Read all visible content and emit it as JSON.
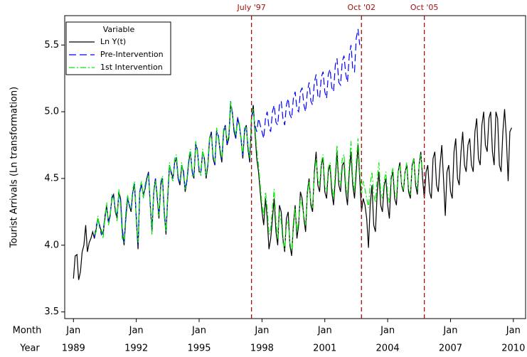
{
  "chart_data": {
    "type": "line",
    "y_label": "Tourist Arrivals (Ln transformation)",
    "x_row_labels": [
      "Month",
      "Year"
    ],
    "legend_title": "Variable",
    "legend": "upper left",
    "xlim": [
      "1988-08",
      "2010-08"
    ],
    "ylim": [
      3.45,
      5.72
    ],
    "yticks": [
      3.5,
      {
        "value": 4,
        "label": "4.0"
      },
      4.5,
      {
        "value": 5,
        "label": "5.0"
      },
      5.5
    ],
    "xticks": [
      {
        "value": "1989-01",
        "label": [
          "Jan",
          "1989"
        ]
      },
      {
        "value": "1992-01",
        "label": [
          "Jan",
          "1992"
        ]
      },
      {
        "value": "1995-01",
        "label": [
          "Jan",
          "1995"
        ]
      },
      {
        "value": "1998-01",
        "label": [
          "Jan",
          "1998"
        ]
      },
      {
        "value": "2001-01",
        "label": [
          "Jan",
          "2001"
        ]
      },
      {
        "value": "2004-01",
        "label": [
          "Jan",
          "2004"
        ]
      },
      {
        "value": "2007-01",
        "label": [
          "Jan",
          "2007"
        ]
      },
      {
        "value": "2010-01",
        "label": [
          "Jan",
          "2010"
        ]
      }
    ],
    "annotations": [
      {
        "label": "July '97",
        "x": "1997-07",
        "color": "#a01010"
      },
      {
        "label": "Oct '02",
        "x": "2002-10",
        "color": "#a01010"
      },
      {
        "label": "Oct '05",
        "x": "2005-10",
        "color": "#a01010"
      }
    ],
    "x": [
      "1989-01",
      "1989-02",
      "1989-03",
      "1989-04",
      "1989-05",
      "1989-06",
      "1989-07",
      "1989-08",
      "1989-09",
      "1989-10",
      "1989-11",
      "1989-12",
      "1990-01",
      "1990-02",
      "1990-03",
      "1990-04",
      "1990-05",
      "1990-06",
      "1990-07",
      "1990-08",
      "1990-09",
      "1990-10",
      "1990-11",
      "1990-12",
      "1991-01",
      "1991-02",
      "1991-03",
      "1991-04",
      "1991-05",
      "1991-06",
      "1991-07",
      "1991-08",
      "1991-09",
      "1991-10",
      "1991-11",
      "1991-12",
      "1992-01",
      "1992-02",
      "1992-03",
      "1992-04",
      "1992-05",
      "1992-06",
      "1992-07",
      "1992-08",
      "1992-09",
      "1992-10",
      "1992-11",
      "1992-12",
      "1993-01",
      "1993-02",
      "1993-03",
      "1993-04",
      "1993-05",
      "1993-06",
      "1993-07",
      "1993-08",
      "1993-09",
      "1993-10",
      "1993-11",
      "1993-12",
      "1994-01",
      "1994-02",
      "1994-03",
      "1994-04",
      "1994-05",
      "1994-06",
      "1994-07",
      "1994-08",
      "1994-09",
      "1994-10",
      "1994-11",
      "1994-12",
      "1995-01",
      "1995-02",
      "1995-03",
      "1995-04",
      "1995-05",
      "1995-06",
      "1995-07",
      "1995-08",
      "1995-09",
      "1995-10",
      "1995-11",
      "1995-12",
      "1996-01",
      "1996-02",
      "1996-03",
      "1996-04",
      "1996-05",
      "1996-06",
      "1996-07",
      "1996-08",
      "1996-09",
      "1996-10",
      "1996-11",
      "1996-12",
      "1997-01",
      "1997-02",
      "1997-03",
      "1997-04",
      "1997-05",
      "1997-06",
      "1997-07",
      "1997-08",
      "1997-09",
      "1997-10",
      "1997-11",
      "1997-12",
      "1998-01",
      "1998-02",
      "1998-03",
      "1998-04",
      "1998-05",
      "1998-06",
      "1998-07",
      "1998-08",
      "1998-09",
      "1998-10",
      "1998-11",
      "1998-12",
      "1999-01",
      "1999-02",
      "1999-03",
      "1999-04",
      "1999-05",
      "1999-06",
      "1999-07",
      "1999-08",
      "1999-09",
      "1999-10",
      "1999-11",
      "1999-12",
      "2000-01",
      "2000-02",
      "2000-03",
      "2000-04",
      "2000-05",
      "2000-06",
      "2000-07",
      "2000-08",
      "2000-09",
      "2000-10",
      "2000-11",
      "2000-12",
      "2001-01",
      "2001-02",
      "2001-03",
      "2001-04",
      "2001-05",
      "2001-06",
      "2001-07",
      "2001-08",
      "2001-09",
      "2001-10",
      "2001-11",
      "2001-12",
      "2002-01",
      "2002-02",
      "2002-03",
      "2002-04",
      "2002-05",
      "2002-06",
      "2002-07",
      "2002-08",
      "2002-09",
      "2002-10",
      "2002-11",
      "2002-12",
      "2003-01",
      "2003-02",
      "2003-03",
      "2003-04",
      "2003-05",
      "2003-06",
      "2003-07",
      "2003-08",
      "2003-09",
      "2003-10",
      "2003-11",
      "2003-12",
      "2004-01",
      "2004-02",
      "2004-03",
      "2004-04",
      "2004-05",
      "2004-06",
      "2004-07",
      "2004-08",
      "2004-09",
      "2004-10",
      "2004-11",
      "2004-12",
      "2005-01",
      "2005-02",
      "2005-03",
      "2005-04",
      "2005-05",
      "2005-06",
      "2005-07",
      "2005-08",
      "2005-09",
      "2005-10",
      "2005-11",
      "2005-12",
      "2006-01",
      "2006-02",
      "2006-03",
      "2006-04",
      "2006-05",
      "2006-06",
      "2006-07",
      "2006-08",
      "2006-09",
      "2006-10",
      "2006-11",
      "2006-12",
      "2007-01",
      "2007-02",
      "2007-03",
      "2007-04",
      "2007-05",
      "2007-06",
      "2007-07",
      "2007-08",
      "2007-09",
      "2007-10",
      "2007-11",
      "2007-12",
      "2008-01",
      "2008-02",
      "2008-03",
      "2008-04",
      "2008-05",
      "2008-06",
      "2008-07",
      "2008-08",
      "2008-09",
      "2008-10",
      "2008-11",
      "2008-12",
      "2009-01",
      "2009-02",
      "2009-03",
      "2009-04",
      "2009-05",
      "2009-06",
      "2009-07",
      "2009-08",
      "2009-09",
      "2009-10",
      "2009-11",
      "2009-12"
    ],
    "series": [
      {
        "name": "Ln Y(t)",
        "color": "#000000",
        "dash": "none",
        "values": [
          3.75,
          3.92,
          3.93,
          3.74,
          3.8,
          3.95,
          4.0,
          4.15,
          3.95,
          4.02,
          4.05,
          4.1,
          4.05,
          4.12,
          4.2,
          4.15,
          4.1,
          4.08,
          4.2,
          4.3,
          4.18,
          4.22,
          4.35,
          4.38,
          4.25,
          4.2,
          4.4,
          4.35,
          4.1,
          4.0,
          4.2,
          4.35,
          4.3,
          4.25,
          4.4,
          4.45,
          4.2,
          3.97,
          4.4,
          4.45,
          4.38,
          4.42,
          4.5,
          4.55,
          4.3,
          4.1,
          4.4,
          4.5,
          4.35,
          4.2,
          4.45,
          4.5,
          4.25,
          4.08,
          4.35,
          4.6,
          4.55,
          4.5,
          4.62,
          4.65,
          4.5,
          4.45,
          4.6,
          4.55,
          4.4,
          4.48,
          4.62,
          4.7,
          4.55,
          4.5,
          4.75,
          4.72,
          4.55,
          4.55,
          4.7,
          4.65,
          4.5,
          4.6,
          4.8,
          4.85,
          4.65,
          4.6,
          4.85,
          4.82,
          4.7,
          4.62,
          4.85,
          4.9,
          4.75,
          4.8,
          5.05,
          5.0,
          4.85,
          4.8,
          4.95,
          4.9,
          4.8,
          4.65,
          4.85,
          4.9,
          4.72,
          4.62,
          4.95,
          5.05,
          4.85,
          4.65,
          4.55,
          4.4,
          4.25,
          4.15,
          4.35,
          4.2,
          3.97,
          4.05,
          4.2,
          4.35,
          4.1,
          4.0,
          4.3,
          4.25,
          4.05,
          3.95,
          4.2,
          4.25,
          4.0,
          3.92,
          4.15,
          4.3,
          4.05,
          4.15,
          4.4,
          4.35,
          4.2,
          4.1,
          4.4,
          4.5,
          4.3,
          4.25,
          4.55,
          4.7,
          4.45,
          4.4,
          4.6,
          4.65,
          4.4,
          4.35,
          4.55,
          4.6,
          4.4,
          4.3,
          4.5,
          4.7,
          4.45,
          4.4,
          4.6,
          4.62,
          4.4,
          4.3,
          4.55,
          4.7,
          4.45,
          4.35,
          4.55,
          4.75,
          4.5,
          4.25,
          4.35,
          4.3,
          4.2,
          3.98,
          4.3,
          4.45,
          4.15,
          4.1,
          4.4,
          4.55,
          4.3,
          4.25,
          4.45,
          4.5,
          4.3,
          4.2,
          4.5,
          4.55,
          4.35,
          4.3,
          4.55,
          4.62,
          4.45,
          4.4,
          4.55,
          4.6,
          4.4,
          4.35,
          4.6,
          4.65,
          4.45,
          4.38,
          4.6,
          4.7,
          4.5,
          4.35,
          4.55,
          4.6,
          4.4,
          4.35,
          4.65,
          4.7,
          4.45,
          4.4,
          4.6,
          4.75,
          4.5,
          4.22,
          4.55,
          4.6,
          4.4,
          4.35,
          4.7,
          4.8,
          4.5,
          4.45,
          4.7,
          4.85,
          4.6,
          4.55,
          4.75,
          4.8,
          4.6,
          4.55,
          4.85,
          4.95,
          4.65,
          4.6,
          4.9,
          5.0,
          4.75,
          4.7,
          4.95,
          5.0,
          4.7,
          4.6,
          5.0,
          4.95,
          4.6,
          4.55,
          4.85,
          5.02,
          4.8,
          4.48,
          4.85,
          4.88
        ]
      },
      {
        "name": "Pre-Intervention",
        "color": "#0000ff",
        "dash": "10,5",
        "values": [
          null,
          null,
          null,
          null,
          null,
          null,
          null,
          null,
          null,
          null,
          null,
          null,
          4.06,
          4.14,
          4.2,
          4.14,
          4.08,
          4.1,
          4.22,
          4.3,
          4.16,
          4.22,
          4.36,
          4.38,
          4.26,
          4.22,
          4.38,
          4.34,
          4.12,
          4.02,
          4.22,
          4.36,
          4.3,
          4.26,
          4.4,
          4.46,
          4.22,
          4.0,
          4.4,
          4.46,
          4.36,
          4.42,
          4.5,
          4.54,
          4.3,
          4.12,
          4.4,
          4.5,
          4.36,
          4.22,
          4.46,
          4.5,
          4.26,
          4.1,
          4.36,
          4.6,
          4.54,
          4.5,
          4.62,
          4.66,
          4.5,
          4.46,
          4.6,
          4.56,
          4.42,
          4.48,
          4.62,
          4.7,
          4.56,
          4.5,
          4.76,
          4.72,
          4.56,
          4.54,
          4.7,
          4.64,
          4.52,
          4.6,
          4.8,
          4.84,
          4.66,
          4.6,
          4.86,
          4.82,
          4.72,
          4.64,
          4.86,
          4.9,
          4.76,
          4.8,
          5.08,
          5.0,
          4.86,
          4.8,
          4.96,
          4.9,
          4.8,
          4.66,
          4.86,
          4.9,
          4.74,
          4.64,
          4.96,
          5.0,
          4.9,
          4.85,
          4.95,
          4.9,
          4.85,
          4.8,
          4.95,
          5.0,
          4.88,
          4.85,
          5.0,
          5.05,
          4.92,
          4.9,
          5.05,
          5.08,
          4.95,
          4.9,
          5.05,
          5.1,
          4.98,
          4.95,
          5.1,
          5.15,
          5.02,
          5.0,
          5.15,
          5.18,
          5.05,
          5.0,
          5.15,
          5.22,
          5.08,
          5.05,
          5.22,
          5.28,
          5.12,
          5.1,
          5.26,
          5.3,
          5.15,
          5.1,
          5.28,
          5.32,
          5.18,
          5.15,
          5.35,
          5.4,
          5.22,
          5.2,
          5.38,
          5.42,
          5.28,
          5.22,
          5.42,
          5.5,
          5.32,
          5.3,
          5.55,
          5.62,
          5.5,
          null,
          null,
          null,
          null,
          null,
          null,
          null,
          null,
          null,
          null,
          null,
          null,
          null,
          null,
          null,
          null,
          null,
          null,
          null,
          null,
          null,
          null,
          null,
          null,
          null,
          null,
          null,
          null,
          null,
          null,
          null,
          null,
          null,
          null,
          null,
          null,
          null,
          null,
          null,
          null,
          null,
          null,
          null,
          null,
          null,
          null,
          null,
          null,
          null,
          null,
          null,
          null,
          null,
          null,
          null,
          null,
          null,
          null,
          null,
          null,
          null,
          null,
          null,
          null,
          null,
          null,
          null,
          null,
          null,
          null,
          null,
          null,
          null,
          null,
          null,
          null,
          null,
          null,
          null,
          null,
          null,
          null,
          null,
          null,
          null,
          null,
          null
        ]
      },
      {
        "name": "1st Intervention",
        "color": "#00ee00",
        "dash": "8,3,2,3",
        "values": [
          null,
          null,
          null,
          null,
          null,
          null,
          null,
          null,
          null,
          null,
          null,
          null,
          4.08,
          4.1,
          4.22,
          4.12,
          4.12,
          4.05,
          4.22,
          4.32,
          4.15,
          4.2,
          4.38,
          4.35,
          4.28,
          4.18,
          4.42,
          4.3,
          4.05,
          4.02,
          4.25,
          4.38,
          4.28,
          4.28,
          4.42,
          4.48,
          4.18,
          4.02,
          4.42,
          4.48,
          4.35,
          4.45,
          4.52,
          4.52,
          4.32,
          4.08,
          4.42,
          4.48,
          4.38,
          4.22,
          4.48,
          4.52,
          4.22,
          4.1,
          4.38,
          4.62,
          4.52,
          4.48,
          4.65,
          4.68,
          4.52,
          4.48,
          4.62,
          4.52,
          4.42,
          4.5,
          4.65,
          4.72,
          4.52,
          4.52,
          4.78,
          4.7,
          4.58,
          4.52,
          4.72,
          4.62,
          4.52,
          4.62,
          4.82,
          4.82,
          4.68,
          4.62,
          4.88,
          4.8,
          4.72,
          4.65,
          4.88,
          4.88,
          4.78,
          4.82,
          5.08,
          4.98,
          4.88,
          4.82,
          4.92,
          4.92,
          4.78,
          4.68,
          4.88,
          4.88,
          4.75,
          4.65,
          4.98,
          5.02,
          4.88,
          4.72,
          4.6,
          4.45,
          4.3,
          4.22,
          4.4,
          4.28,
          4.08,
          4.12,
          4.28,
          4.42,
          4.18,
          4.05,
          4.25,
          4.18,
          4.02,
          3.97,
          4.15,
          4.18,
          4.02,
          3.96,
          4.12,
          4.28,
          4.1,
          4.18,
          4.35,
          4.3,
          4.22,
          4.15,
          4.38,
          4.48,
          4.32,
          4.28,
          4.52,
          4.65,
          4.5,
          4.45,
          4.62,
          4.68,
          4.45,
          4.4,
          4.58,
          4.62,
          4.45,
          4.35,
          4.55,
          4.75,
          4.5,
          4.45,
          4.65,
          4.68,
          4.45,
          4.38,
          4.6,
          4.78,
          4.5,
          4.4,
          4.62,
          4.8,
          4.55,
          4.38,
          4.48,
          4.42,
          4.35,
          4.28,
          4.45,
          4.55,
          4.38,
          4.32,
          4.5,
          4.62,
          4.4,
          4.35,
          4.48,
          4.55,
          4.38,
          4.32,
          4.52,
          4.58,
          4.4,
          4.36,
          4.55,
          4.6,
          4.45,
          4.42,
          4.55,
          4.62,
          4.42,
          4.38,
          4.58,
          4.65,
          4.48,
          4.42,
          4.6,
          4.68,
          4.55,
          null,
          null,
          null,
          null,
          null,
          null,
          null,
          null,
          null,
          null,
          null,
          null,
          null,
          null,
          null,
          null,
          null,
          null,
          null,
          null,
          null,
          null,
          null,
          null,
          null,
          null,
          null,
          null,
          null,
          null,
          null,
          null,
          null,
          null,
          null,
          null,
          null,
          null,
          null,
          null,
          null,
          null,
          null,
          null,
          null,
          null,
          null,
          null,
          null,
          null,
          null
        ]
      }
    ]
  }
}
